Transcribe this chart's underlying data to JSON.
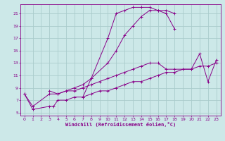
{
  "background_color": "#cce8e8",
  "grid_color": "#aacccc",
  "line_color": "#880088",
  "xlabel": "Windchill (Refroidissement éolien,°C)",
  "xlim": [
    -0.5,
    23.5
  ],
  "ylim": [
    4.5,
    22.5
  ],
  "xticks": [
    0,
    1,
    2,
    3,
    4,
    5,
    6,
    7,
    8,
    9,
    10,
    11,
    12,
    13,
    14,
    15,
    16,
    17,
    18,
    19,
    20,
    21,
    22,
    23
  ],
  "yticks": [
    5,
    7,
    9,
    11,
    13,
    15,
    17,
    19,
    21
  ],
  "series": [
    {
      "x": [
        7,
        8,
        10,
        11,
        12,
        13,
        14,
        15,
        16,
        17,
        18
      ],
      "y": [
        7.5,
        10.5,
        17,
        21,
        21.5,
        22,
        22,
        22,
        21.5,
        21,
        18.5
      ]
    },
    {
      "x": [
        0,
        1,
        3,
        4,
        5,
        6,
        7,
        8,
        10,
        11,
        12,
        13,
        14,
        15,
        16,
        17,
        18
      ],
      "y": [
        8,
        6,
        8,
        8,
        8.5,
        9,
        9.5,
        10.5,
        13,
        15,
        17.5,
        19,
        20.5,
        21.5,
        21.5,
        21.5,
        21
      ]
    },
    {
      "x": [
        3,
        4,
        5,
        6,
        7,
        8,
        9,
        10,
        11,
        12,
        13,
        14,
        15,
        16,
        17,
        18,
        19,
        20,
        21,
        22,
        23
      ],
      "y": [
        8.5,
        8,
        8.5,
        8.5,
        9,
        9.5,
        10,
        10.5,
        11,
        11.5,
        12,
        12.5,
        13,
        13,
        12,
        12,
        12,
        12,
        14.5,
        10,
        13.5
      ]
    },
    {
      "x": [
        0,
        1,
        3,
        3.5,
        4,
        5,
        6,
        7,
        8,
        9,
        10,
        11,
        12,
        13,
        14,
        15,
        16,
        17,
        18,
        19,
        20,
        21,
        22,
        23
      ],
      "y": [
        8,
        5.5,
        6,
        6,
        7,
        7,
        7.5,
        7.5,
        8,
        8.5,
        8.5,
        9,
        9.5,
        10,
        10,
        10.5,
        11,
        11.5,
        11.5,
        12,
        12,
        12.5,
        12.5,
        13
      ]
    }
  ]
}
